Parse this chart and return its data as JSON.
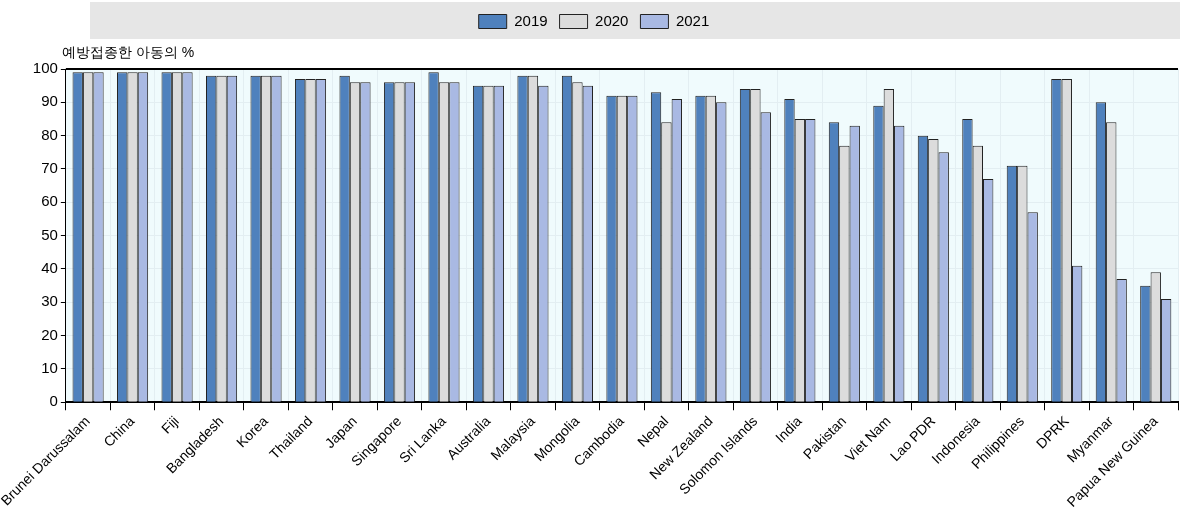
{
  "chart_data": {
    "type": "bar",
    "ylabel": "예방접종한 아동의 %",
    "categories": [
      "Brunei Darussalam",
      "China",
      "Fiji",
      "Bangladesh",
      "Korea",
      "Thailand",
      "Japan",
      "Singapore",
      "Sri Lanka",
      "Australia",
      "Malaysia",
      "Mongolia",
      "Cambodia",
      "Nepal",
      "New Zealand",
      "Solomon Islands",
      "India",
      "Pakistan",
      "Viet Nam",
      "Lao PDR",
      "Indonesia",
      "Philippines",
      "DPRK",
      "Myanmar",
      "Papua New Guinea"
    ],
    "series": [
      {
        "name": "2019",
        "color": "#4f81bd",
        "values": [
          99,
          99,
          99,
          98,
          98,
          97,
          98,
          96,
          99,
          95,
          98,
          98,
          92,
          93,
          92,
          94,
          91,
          84,
          89,
          80,
          85,
          71,
          97,
          90,
          35
        ]
      },
      {
        "name": "2020",
        "color": "#dcdcdc",
        "values": [
          99,
          99,
          99,
          98,
          98,
          97,
          96,
          96,
          96,
          95,
          98,
          96,
          92,
          84,
          92,
          94,
          85,
          77,
          94,
          79,
          77,
          71,
          97,
          84,
          39
        ]
      },
      {
        "name": "2021",
        "color": "#a9b9e3",
        "values": [
          99,
          99,
          99,
          98,
          98,
          97,
          96,
          96,
          96,
          95,
          95,
          95,
          92,
          91,
          90,
          87,
          85,
          83,
          83,
          75,
          67,
          57,
          41,
          37,
          31
        ]
      }
    ],
    "ylim": [
      0,
      100
    ],
    "yticks": [
      0,
      10,
      20,
      30,
      40,
      50,
      60,
      70,
      80,
      90,
      100
    ],
    "grid": true,
    "legend": "top"
  }
}
